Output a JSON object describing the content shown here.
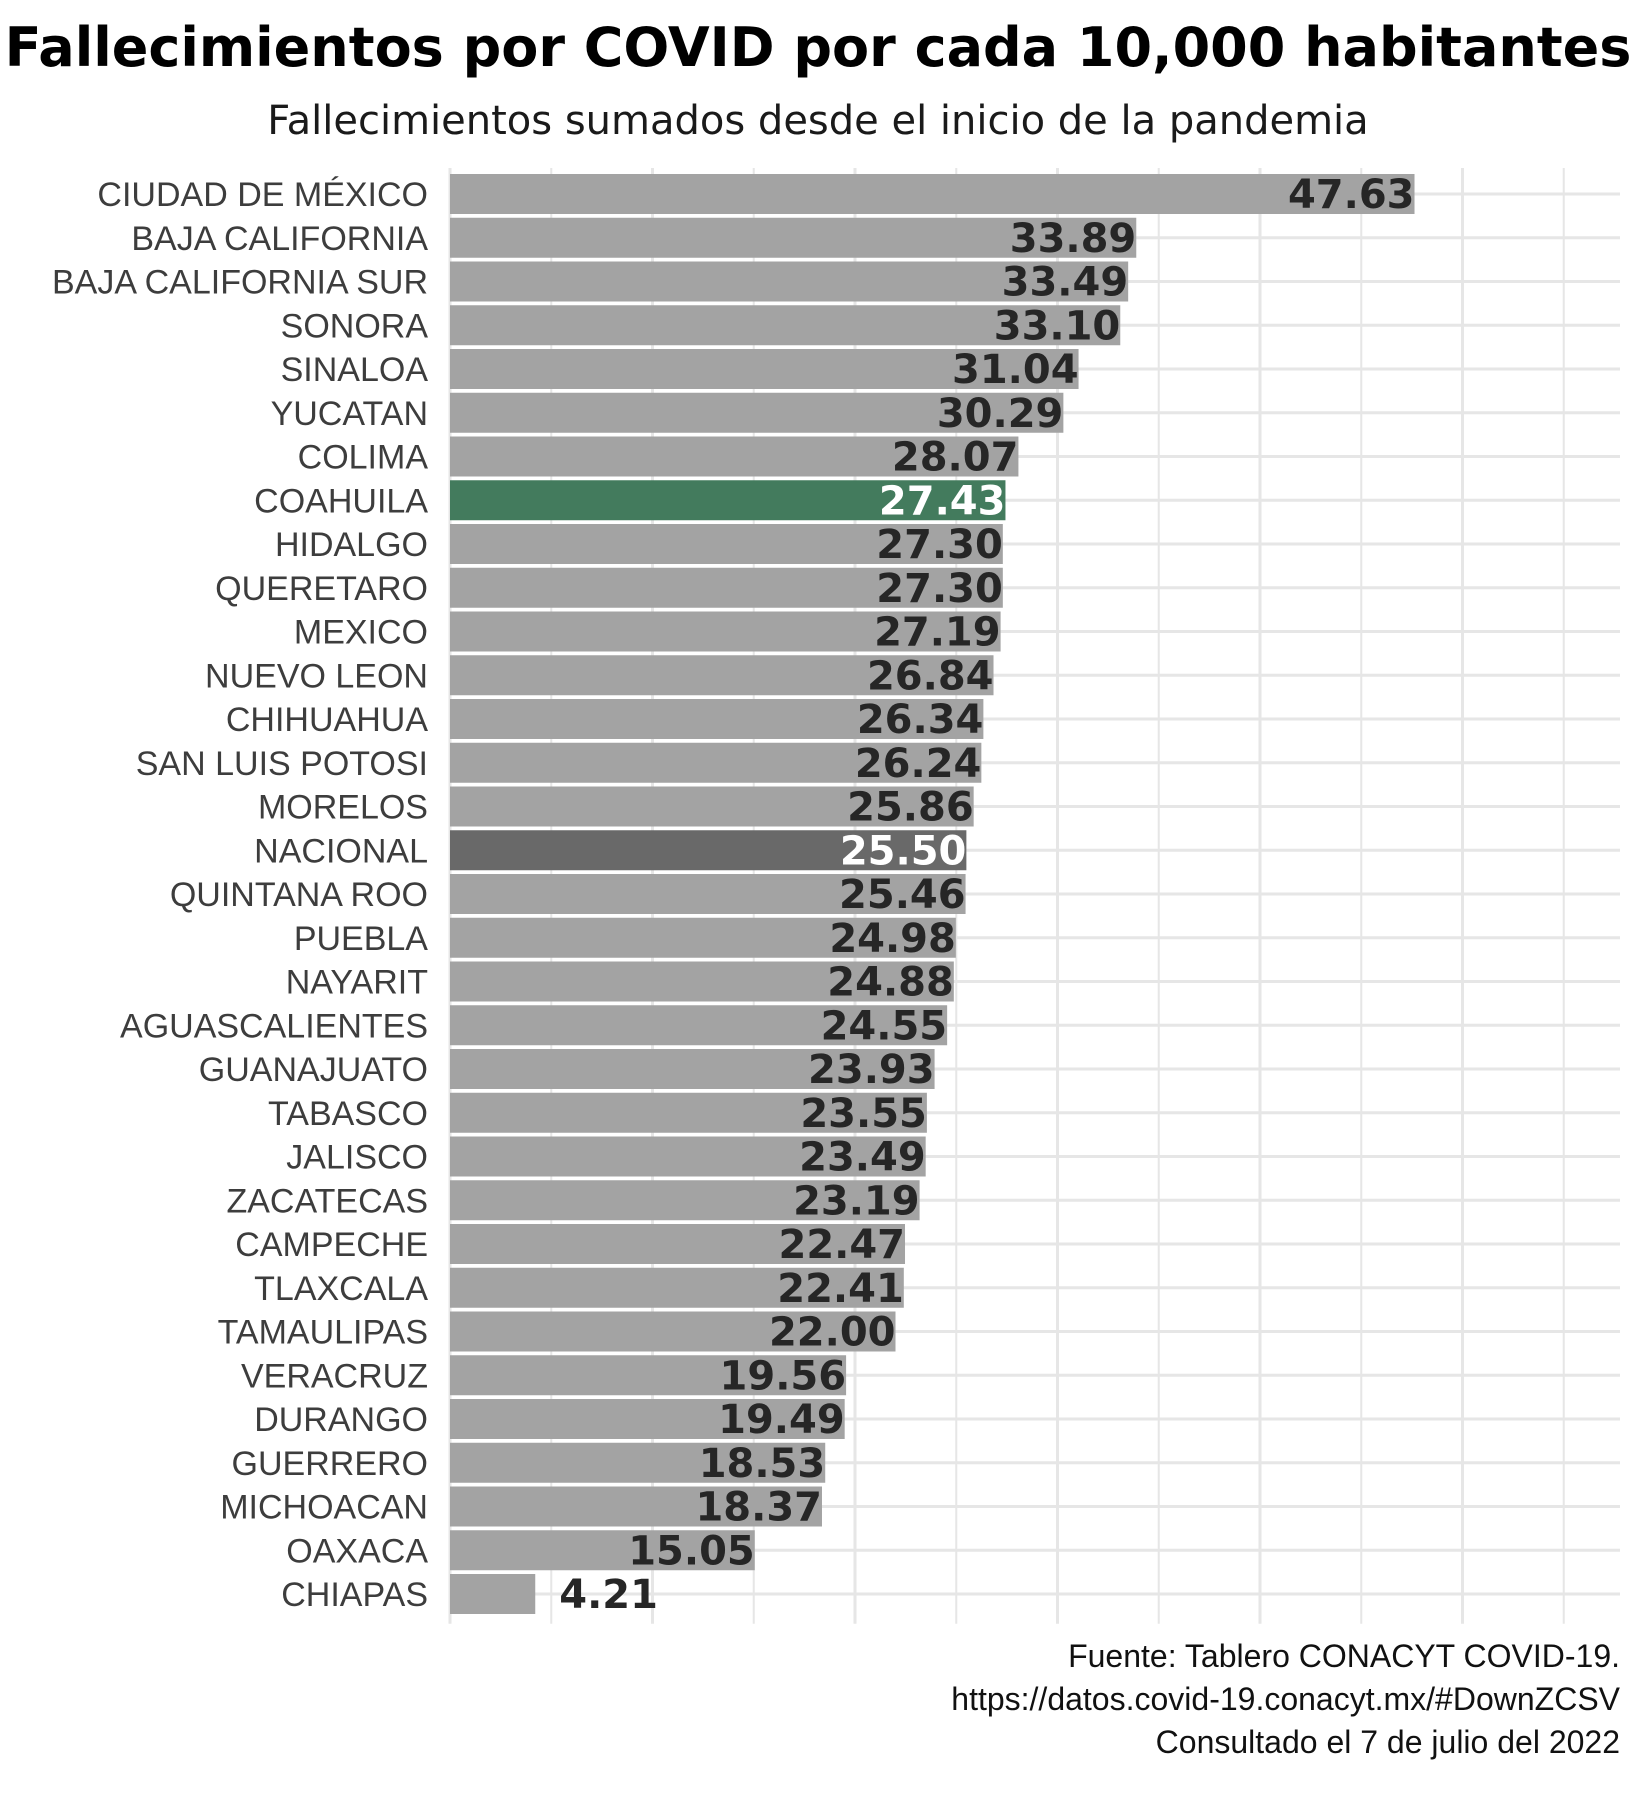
{
  "chart_data": {
    "type": "bar",
    "orientation": "horizontal",
    "title": "Fallecimientos por COVID por cada 10,000 habitantes",
    "subtitle": "Fallecimientos sumados desde el inicio de la pandemia",
    "xlabel": "",
    "ylabel": "",
    "xlim": [
      0,
      55
    ],
    "grid": true,
    "categories": [
      "CIUDAD DE MÉXICO",
      "BAJA CALIFORNIA",
      "BAJA CALIFORNIA SUR",
      "SONORA",
      "SINALOA",
      "YUCATAN",
      "COLIMA",
      "COAHUILA",
      "HIDALGO",
      "QUERETARO",
      "MEXICO",
      "NUEVO LEON",
      "CHIHUAHUA",
      "SAN LUIS POTOSI",
      "MORELOS",
      "NACIONAL",
      "QUINTANA ROO",
      "PUEBLA",
      "NAYARIT",
      "AGUASCALIENTES",
      "GUANAJUATO",
      "TABASCO",
      "JALISCO",
      "ZACATECAS",
      "CAMPECHE",
      "TLAXCALA",
      "TAMAULIPAS",
      "VERACRUZ",
      "DURANGO",
      "GUERRERO",
      "MICHOACAN",
      "OAXACA",
      "CHIAPAS"
    ],
    "values": [
      47.63,
      33.89,
      33.49,
      33.1,
      31.04,
      30.29,
      28.07,
      27.43,
      27.3,
      27.3,
      27.19,
      26.84,
      26.34,
      26.24,
      25.86,
      25.5,
      25.46,
      24.98,
      24.88,
      24.55,
      23.93,
      23.55,
      23.49,
      23.19,
      22.47,
      22.41,
      22.0,
      19.56,
      19.49,
      18.53,
      18.37,
      15.05,
      4.21
    ],
    "value_labels": [
      "47.63",
      "33.89",
      "33.49",
      "33.10",
      "31.04",
      "30.29",
      "28.07",
      "27.43",
      "27.30",
      "27.30",
      "27.19",
      "26.84",
      "26.34",
      "26.24",
      "25.86",
      "25.50",
      "25.46",
      "24.98",
      "24.88",
      "24.55",
      "23.93",
      "23.55",
      "23.49",
      "23.19",
      "22.47",
      "22.41",
      "22.00",
      "19.56",
      "19.49",
      "18.53",
      "18.37",
      "15.05",
      "4.21"
    ],
    "colors": {
      "default": "#a3a3a3",
      "COAHUILA": "#437b5d",
      "NACIONAL": "#696969",
      "grid": "#e6e6e6",
      "label_dark": "#262626",
      "label_light": "#ffffff"
    }
  },
  "caption": {
    "lines": [
      "Fuente: Tablero CONACYT COVID-19.",
      "https://datos.covid-19.conacyt.mx/#DownZCSV",
      "Consultado el 7 de julio del 2022"
    ]
  }
}
